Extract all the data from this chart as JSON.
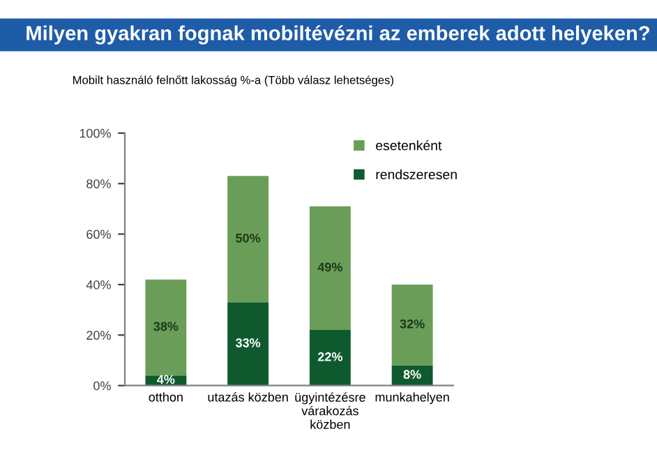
{
  "chart_data": {
    "type": "bar",
    "stacked": true,
    "title": "Milyen gyakran fognak mobiltévézni az emberek adott helyeken?",
    "subtitle": "Mobilt használó felnőtt lakosság %-a (Több válasz lehetséges)",
    "categories": [
      "otthon",
      "utazás közben",
      "ügyintézésre\nvárakozás\nközben",
      "munkahelyen"
    ],
    "series": [
      {
        "name": "rendszeresen",
        "color": "#0e5a2e",
        "values": [
          4,
          33,
          22,
          8
        ],
        "value_labels": [
          "4%",
          "33%",
          "22%",
          "8%"
        ]
      },
      {
        "name": "esetenként",
        "color": "#6a9e58",
        "values": [
          38,
          50,
          49,
          32
        ],
        "value_labels": [
          "38%",
          "50%",
          "49%",
          "32%"
        ]
      }
    ],
    "ylim": [
      0,
      100
    ],
    "yticks": [
      {
        "value": 0,
        "label": "0%"
      },
      {
        "value": 20,
        "label": "20%"
      },
      {
        "value": 40,
        "label": "40%"
      },
      {
        "value": 60,
        "label": "60%"
      },
      {
        "value": 80,
        "label": "80%"
      },
      {
        "value": 100,
        "label": "100%"
      }
    ],
    "grid": false,
    "legend": "top right"
  }
}
